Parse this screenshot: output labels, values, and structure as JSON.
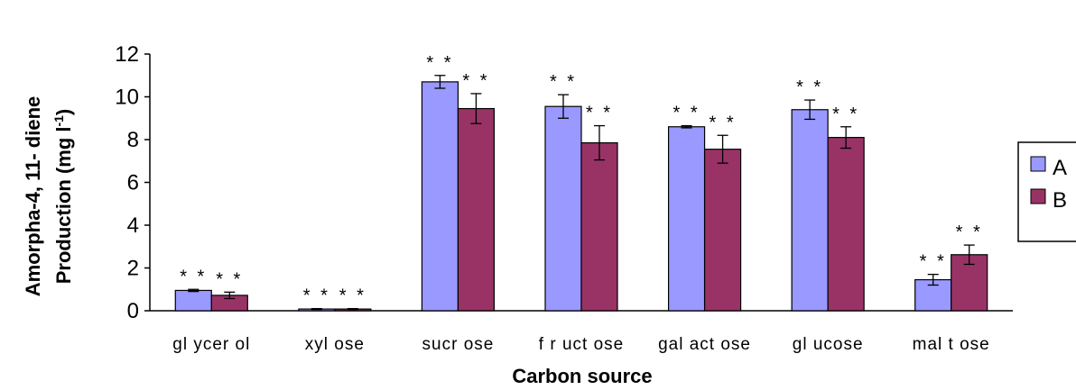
{
  "chart_data": {
    "type": "bar",
    "xlabel": "Carbon source",
    "ylabel_line1": "Amorpha-4, 11- diene",
    "ylabel_line2_prefix": "Production (mg l",
    "ylabel_sup": "-1",
    "ylabel_suffix": ")",
    "ylim": [
      0,
      12
    ],
    "yticks": [
      "0",
      "2",
      "4",
      "6",
      "8",
      "10",
      "12"
    ],
    "categories": [
      "gl ycer ol",
      "xyl ose",
      "sucr ose",
      "f r uct ose",
      "gal act ose",
      "gl ucose",
      "mal t ose"
    ],
    "series": [
      {
        "name": "A",
        "color": "#9999ff",
        "values": [
          0.95,
          0.08,
          10.7,
          9.55,
          8.6,
          9.4,
          1.45
        ],
        "errors": [
          0.05,
          0.02,
          0.3,
          0.55,
          0.05,
          0.45,
          0.25
        ],
        "labels": [
          "* *",
          "* *",
          "* *",
          "* *",
          "* *",
          "* *",
          "* *"
        ]
      },
      {
        "name": "B",
        "color": "#993366",
        "values": [
          0.72,
          0.08,
          9.45,
          7.85,
          7.55,
          8.1,
          2.62
        ],
        "errors": [
          0.15,
          0.02,
          0.7,
          0.8,
          0.65,
          0.5,
          0.45
        ],
        "labels": [
          "* *",
          "* *",
          "* *",
          "* *",
          "* *",
          "* *",
          "* *"
        ]
      }
    ],
    "legend": "right",
    "grid": false
  }
}
